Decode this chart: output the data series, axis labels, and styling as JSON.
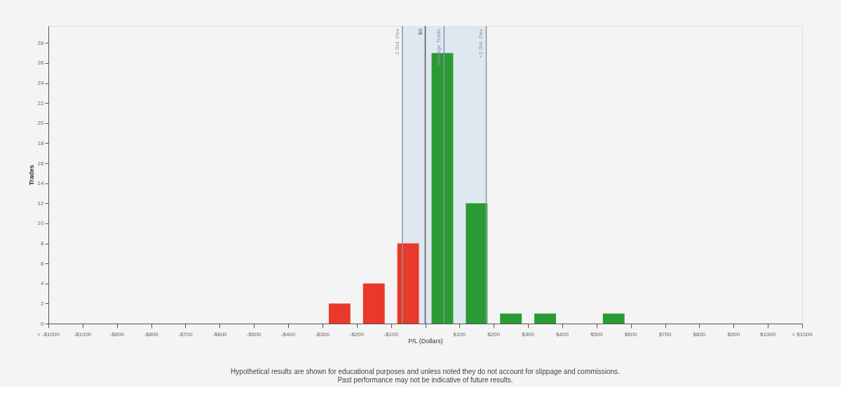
{
  "chart_data": {
    "type": "histogram",
    "bins": [
      -1100,
      -1000,
      -900,
      -800,
      -700,
      -600,
      -500,
      -400,
      -300,
      -200,
      -100,
      0,
      100,
      200,
      300,
      400,
      500,
      600,
      700,
      800,
      900,
      1000,
      1100
    ],
    "values": [
      0,
      0,
      0,
      0,
      0,
      0,
      0,
      0,
      2,
      4,
      8,
      27,
      12,
      1,
      1,
      0,
      1,
      0,
      0,
      0,
      0,
      0
    ],
    "colors": [
      "#e8392a",
      "#e8392a",
      "#e8392a",
      "#e8392a",
      "#e8392a",
      "#e8392a",
      "#e8392a",
      "#e8392a",
      "#e8392a",
      "#e8392a",
      "#e8392a",
      "#2a9a34",
      "#2a9a34",
      "#2a9a34",
      "#2a9a34",
      "#2a9a34",
      "#2a9a34",
      "#2a9a34",
      "#2a9a34",
      "#2a9a34",
      "#2a9a34",
      "#2a9a34"
    ],
    "xlabel": "P/L (Dollars)",
    "ylabel": "Trades",
    "xlim": [
      -1100,
      1100
    ],
    "xticks": [
      {
        "value": -1100,
        "label": "< -$1000"
      },
      {
        "value": -1000,
        "label": "-$1000"
      },
      {
        "value": -900,
        "label": "-$900"
      },
      {
        "value": -800,
        "label": "-$800"
      },
      {
        "value": -700,
        "label": "-$700"
      },
      {
        "value": -600,
        "label": "-$600"
      },
      {
        "value": -500,
        "label": "-$500"
      },
      {
        "value": -400,
        "label": "-$400"
      },
      {
        "value": -300,
        "label": "-$300"
      },
      {
        "value": -200,
        "label": "-$200"
      },
      {
        "value": -100,
        "label": "-$100"
      },
      {
        "value": 0,
        "label": null
      },
      {
        "value": 100,
        "label": "$100"
      },
      {
        "value": 200,
        "label": "$200"
      },
      {
        "value": 300,
        "label": "$300"
      },
      {
        "value": 400,
        "label": "$400"
      },
      {
        "value": 500,
        "label": "$500"
      },
      {
        "value": 600,
        "label": "$600"
      },
      {
        "value": 700,
        "label": "$700"
      },
      {
        "value": 800,
        "label": "$800"
      },
      {
        "value": 900,
        "label": "$900"
      },
      {
        "value": 1000,
        "label": "$1000"
      },
      {
        "value": 1100,
        "label": "> $1000"
      }
    ],
    "ylim": [
      0,
      29.7
    ],
    "yticks": [
      0,
      2,
      4,
      6,
      8,
      10,
      12,
      14,
      16,
      18,
      20,
      22,
      24,
      26,
      28
    ],
    "bands": [
      {
        "axis": "x",
        "from": -67,
        "to": 178,
        "color": "#dde7f0"
      }
    ],
    "ref_lines": [
      {
        "axis": "x",
        "value": -67,
        "label": "-1 Std. Dev",
        "color": "#8796a5"
      },
      {
        "axis": "x",
        "value": 0,
        "label": "$0",
        "color": "#555555"
      },
      {
        "axis": "x",
        "value": 55,
        "label": "Average Trade",
        "color": "#8796a5"
      },
      {
        "axis": "x",
        "value": 178,
        "label": "+1 Std. Dev",
        "color": "#8796a5"
      }
    ],
    "annotations": [
      "Hypothetical results are shown for educational purposes and unless noted they do not account for slippage and commissions.",
      "Past performance may not be indicative of future results."
    ],
    "grid": false
  }
}
